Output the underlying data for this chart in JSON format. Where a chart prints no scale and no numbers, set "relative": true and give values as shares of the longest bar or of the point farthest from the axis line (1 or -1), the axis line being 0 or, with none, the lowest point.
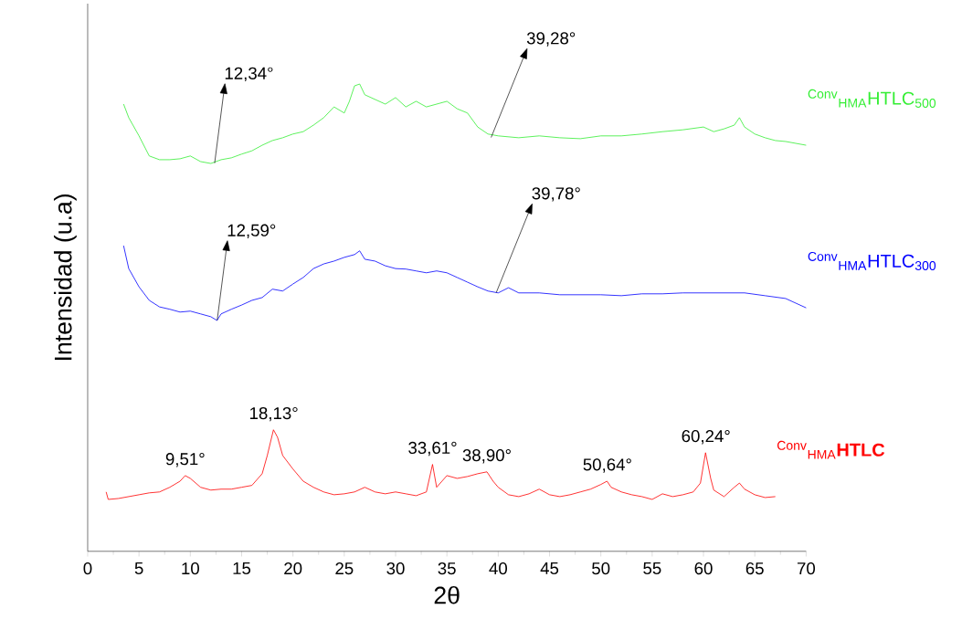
{
  "chart_data": {
    "type": "line",
    "relative": true,
    "xlabel": "2θ",
    "ylabel": "Intensidad (u.a)",
    "xlim": [
      0,
      70
    ],
    "xticks": [
      0,
      5,
      10,
      15,
      20,
      25,
      30,
      35,
      40,
      45,
      50,
      55,
      60,
      65,
      70
    ],
    "grid": false,
    "marker": "none",
    "line_style": "solid",
    "series": [
      {
        "name": "$^{Conv}$$_{HMA}$HTLC$_{500}$",
        "color": "#33ee33",
        "x": [
          3.5,
          4,
          5,
          6,
          7,
          8,
          9,
          10,
          11,
          12,
          13,
          14,
          15,
          16,
          17,
          18,
          19,
          20,
          21,
          22,
          23,
          24,
          25,
          25.5,
          26,
          26.5,
          27,
          28,
          29,
          30,
          31,
          32,
          33,
          34,
          35,
          36,
          37,
          38,
          39,
          40,
          42,
          44,
          46,
          48,
          50,
          52,
          54,
          56,
          58,
          60,
          61,
          62,
          63,
          63.5,
          64,
          65,
          66,
          67,
          68,
          69,
          70
        ],
        "values": [
          0.957,
          0.928,
          0.889,
          0.846,
          0.838,
          0.838,
          0.84,
          0.846,
          0.834,
          0.83,
          0.838,
          0.842,
          0.85,
          0.857,
          0.869,
          0.879,
          0.885,
          0.893,
          0.898,
          0.912,
          0.928,
          0.951,
          0.938,
          0.963,
          0.996,
          1.0,
          0.977,
          0.967,
          0.957,
          0.971,
          0.951,
          0.963,
          0.951,
          0.957,
          0.963,
          0.947,
          0.938,
          0.908,
          0.893,
          0.889,
          0.885,
          0.889,
          0.885,
          0.883,
          0.889,
          0.889,
          0.893,
          0.898,
          0.902,
          0.908,
          0.898,
          0.904,
          0.912,
          0.928,
          0.908,
          0.893,
          0.885,
          0.879,
          0.877,
          0.873,
          0.869
        ]
      },
      {
        "name": "$^{Conv}$$_{HMA}$HTLC$_{300}$",
        "color": "#0000ff",
        "x": [
          3.5,
          4,
          5,
          6,
          7,
          8,
          9,
          10,
          11,
          12,
          12.6,
          13,
          14,
          15,
          16,
          17,
          18,
          19,
          20,
          21,
          22,
          23,
          24,
          25,
          26,
          26.5,
          27,
          28,
          29,
          30,
          31,
          32,
          33,
          34,
          35,
          36,
          37,
          38,
          39,
          40,
          41,
          42,
          44,
          46,
          48,
          50,
          52,
          54,
          56,
          58,
          60,
          62,
          64,
          66,
          68,
          70
        ],
        "values": [
          0.654,
          0.605,
          0.566,
          0.537,
          0.523,
          0.518,
          0.512,
          0.514,
          0.508,
          0.502,
          0.494,
          0.508,
          0.518,
          0.527,
          0.537,
          0.543,
          0.561,
          0.557,
          0.572,
          0.586,
          0.605,
          0.615,
          0.621,
          0.629,
          0.635,
          0.643,
          0.625,
          0.621,
          0.611,
          0.605,
          0.604,
          0.6,
          0.596,
          0.6,
          0.596,
          0.586,
          0.576,
          0.566,
          0.557,
          0.553,
          0.564,
          0.553,
          0.553,
          0.549,
          0.549,
          0.549,
          0.547,
          0.551,
          0.551,
          0.553,
          0.553,
          0.553,
          0.553,
          0.547,
          0.541,
          0.521
        ]
      },
      {
        "name": "$^{Conv}$$_{HMA}$**HTLC**",
        "color": "#ff0000",
        "x": [
          1.8,
          2,
          3,
          4,
          5,
          6,
          7,
          8,
          9,
          9.5,
          10,
          11,
          12,
          13,
          14,
          15,
          16,
          17,
          17.5,
          18.1,
          18.5,
          19,
          20,
          21,
          22,
          23,
          24,
          25,
          26,
          27,
          28,
          29,
          30,
          31,
          32,
          33,
          33.6,
          34,
          35,
          36,
          37,
          38,
          38.9,
          39.5,
          40,
          41,
          42,
          43,
          44,
          45,
          46,
          47,
          48,
          49,
          50,
          50.6,
          51,
          52,
          53,
          54,
          55,
          56,
          57,
          58,
          59,
          59.7,
          60.2,
          60.7,
          61,
          62,
          63,
          63.5,
          64,
          65,
          66,
          67
        ],
        "values": [
          0.127,
          0.111,
          0.113,
          0.117,
          0.121,
          0.125,
          0.127,
          0.137,
          0.15,
          0.162,
          0.156,
          0.137,
          0.131,
          0.133,
          0.133,
          0.137,
          0.141,
          0.166,
          0.205,
          0.26,
          0.244,
          0.205,
          0.176,
          0.15,
          0.137,
          0.127,
          0.121,
          0.123,
          0.127,
          0.137,
          0.127,
          0.123,
          0.127,
          0.123,
          0.119,
          0.127,
          0.186,
          0.137,
          0.162,
          0.156,
          0.16,
          0.166,
          0.17,
          0.15,
          0.137,
          0.121,
          0.117,
          0.123,
          0.133,
          0.121,
          0.117,
          0.121,
          0.127,
          0.133,
          0.143,
          0.15,
          0.137,
          0.127,
          0.121,
          0.117,
          0.111,
          0.123,
          0.117,
          0.121,
          0.127,
          0.146,
          0.211,
          0.156,
          0.131,
          0.117,
          0.137,
          0.146,
          0.133,
          0.121,
          0.115,
          0.117
        ]
      }
    ],
    "annotations": [
      {
        "text": "12,34°",
        "x": 12.34,
        "y": 0.83
      },
      {
        "text": "39,28°",
        "x": 39.28,
        "y": 0.885
      },
      {
        "text": "12,59°",
        "x": 12.59,
        "y": 0.494
      },
      {
        "text": "39,78°",
        "x": 39.78,
        "y": 0.553
      },
      {
        "text": "9,51°",
        "x": 9.51,
        "y": 0.162
      },
      {
        "text": "18,13°",
        "x": 18.13,
        "y": 0.26
      },
      {
        "text": "33,61°",
        "x": 33.61,
        "y": 0.186
      },
      {
        "text": "38,90°",
        "x": 38.9,
        "y": 0.17
      },
      {
        "text": "50,64°",
        "x": 50.64,
        "y": 0.15
      },
      {
        "text": "60,24°",
        "x": 60.24,
        "y": 0.211
      }
    ]
  }
}
